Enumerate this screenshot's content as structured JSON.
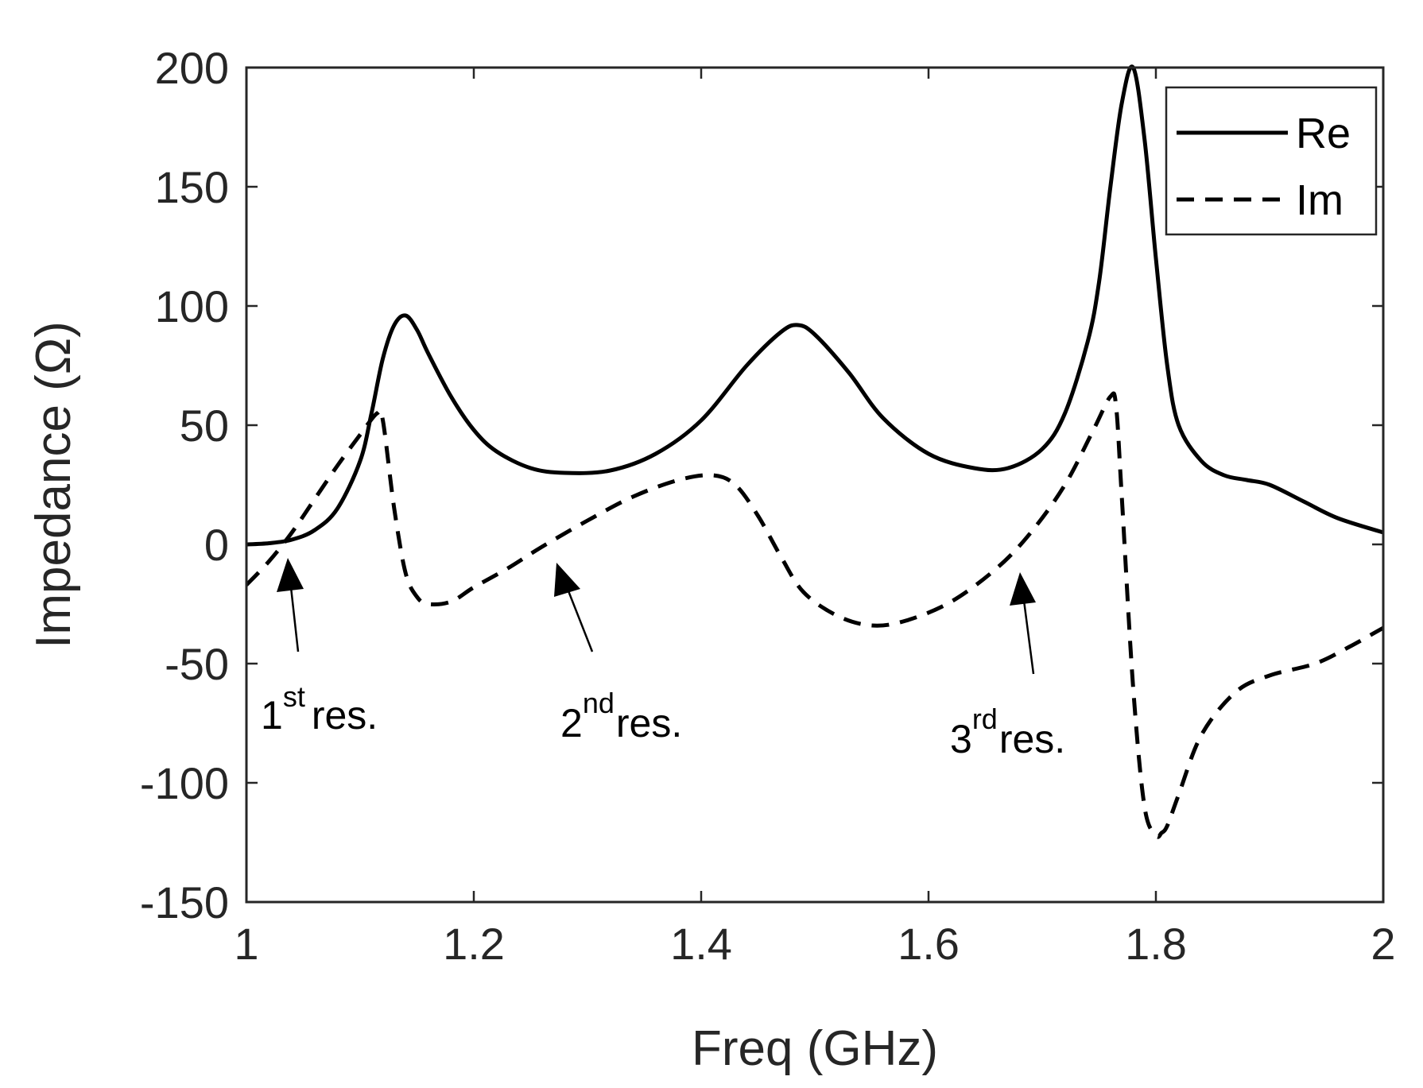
{
  "chart_data": {
    "type": "line",
    "title": "",
    "xlabel": "Freq (GHz)",
    "ylabel": "Impedance (Ω)",
    "xlim": [
      1,
      2
    ],
    "ylim": [
      -150,
      200
    ],
    "xticks": [
      1,
      1.2,
      1.4,
      1.6,
      1.8,
      2
    ],
    "xtick_labels": [
      "1",
      "1.2",
      "1.4",
      "1.6",
      "1.8",
      "2"
    ],
    "yticks": [
      -150,
      -100,
      -50,
      0,
      50,
      100,
      150,
      200
    ],
    "ytick_labels": [
      "-150",
      "-100",
      "-50",
      "0",
      "50",
      "100",
      "150",
      "200"
    ],
    "grid": false,
    "legend": {
      "location": "top-right",
      "entries": [
        "Re",
        "Im"
      ]
    },
    "series": [
      {
        "name": "Re",
        "style": "solid",
        "color": "#000000",
        "x": [
          1.0,
          1.02,
          1.04,
          1.06,
          1.08,
          1.1,
          1.11,
          1.12,
          1.13,
          1.14,
          1.15,
          1.16,
          1.18,
          1.2,
          1.22,
          1.25,
          1.28,
          1.32,
          1.36,
          1.4,
          1.44,
          1.47,
          1.485,
          1.5,
          1.53,
          1.56,
          1.6,
          1.64,
          1.67,
          1.7,
          1.72,
          1.74,
          1.75,
          1.76,
          1.77,
          1.78,
          1.79,
          1.8,
          1.81,
          1.82,
          1.84,
          1.86,
          1.88,
          1.9,
          1.93,
          1.96,
          2.0
        ],
        "y": [
          0,
          0.5,
          2,
          6,
          15,
          35,
          55,
          78,
          92,
          96,
          90,
          80,
          62,
          48,
          39,
          32,
          30,
          31,
          38,
          52,
          75,
          89,
          92,
          88,
          72,
          53,
          38,
          32,
          32,
          40,
          55,
          85,
          110,
          150,
          185,
          200,
          170,
          120,
          75,
          50,
          35,
          29,
          27,
          25,
          18,
          11,
          5
        ]
      },
      {
        "name": "Im",
        "style": "dashed",
        "color": "#000000",
        "x": [
          1.0,
          1.02,
          1.04,
          1.06,
          1.08,
          1.1,
          1.115,
          1.12,
          1.13,
          1.14,
          1.15,
          1.16,
          1.18,
          1.2,
          1.23,
          1.26,
          1.3,
          1.34,
          1.38,
          1.41,
          1.43,
          1.45,
          1.47,
          1.49,
          1.52,
          1.55,
          1.58,
          1.62,
          1.66,
          1.69,
          1.72,
          1.745,
          1.76,
          1.765,
          1.77,
          1.78,
          1.79,
          1.8,
          1.805,
          1.81,
          1.82,
          1.84,
          1.87,
          1.9,
          1.94,
          1.97,
          2.0
        ],
        "y": [
          -17,
          -7,
          5,
          19,
          33,
          46,
          55,
          52,
          15,
          -12,
          -22,
          -25,
          -24,
          -18,
          -10,
          -1,
          10,
          20,
          27,
          29,
          25,
          12,
          -5,
          -20,
          -30,
          -34,
          -32,
          -24,
          -10,
          5,
          25,
          48,
          62,
          58,
          20,
          -60,
          -110,
          -122,
          -121,
          -118,
          -105,
          -80,
          -62,
          -55,
          -50,
          -43,
          -35
        ]
      }
    ],
    "annotations": [
      {
        "label": "1",
        "sup": "st",
        "tail": "res.",
        "points_to": [
          1.035,
          0
        ]
      },
      {
        "label": "2",
        "sup": "nd",
        "tail": "res.",
        "points_to": [
          1.27,
          -5
        ]
      },
      {
        "label": "3",
        "sup": "rd",
        "tail": "res.",
        "points_to": [
          1.68,
          -10
        ]
      }
    ]
  }
}
